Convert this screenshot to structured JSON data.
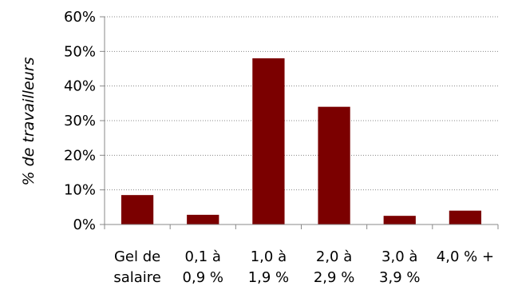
{
  "chart_data": {
    "type": "bar",
    "categories": [
      [
        "Gel de",
        "salaire"
      ],
      [
        "0,1 à",
        "0,9 %"
      ],
      [
        "1,0 à",
        "1,9 %"
      ],
      [
        "2,0 à",
        "2,9 %"
      ],
      [
        "3,0 à",
        "3,9 %"
      ],
      [
        "4,0 % +"
      ]
    ],
    "values": [
      8.5,
      2.8,
      48,
      34,
      2.5,
      4
    ],
    "ylabel": "% de travailleurs",
    "ylim": [
      0,
      60
    ],
    "yticks": [
      0,
      10,
      20,
      30,
      40,
      50,
      60
    ],
    "ytick_labels": [
      "0%",
      "10%",
      "20%",
      "30%",
      "40%",
      "50%",
      "60%"
    ],
    "grid": true,
    "bar_color": "#7b0000",
    "grid_color": "#888888"
  }
}
